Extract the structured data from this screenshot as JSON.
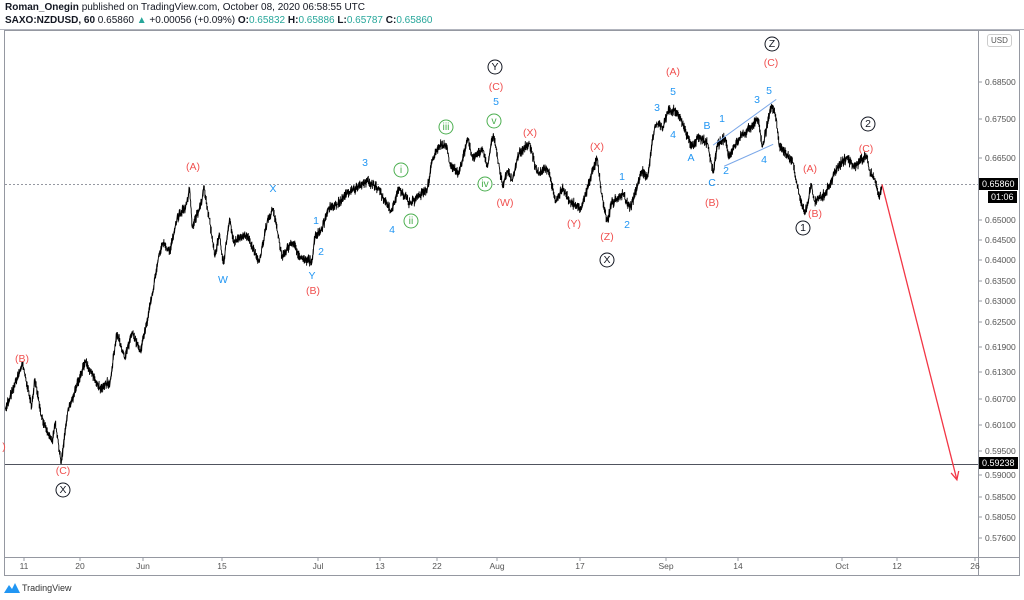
{
  "header": {
    "author": "Roman_Onegin",
    "published": "published on TradingView.com, October 08, 2020 06:58:55 UTC",
    "symbol": "SAXO:NZDUSD, 60",
    "last": "0.65860",
    "change": "+0.00056 (+0.09%)",
    "open_label": "O:",
    "open": "0.65832",
    "high_label": "H:",
    "high": "0.65886",
    "low_label": "L:",
    "low": "0.65787",
    "close_label": "C:",
    "close": "0.65860",
    "up_icon": "triangle-up-icon"
  },
  "currency": "USD",
  "current_price_label": "0.65860",
  "countdown": "01:06",
  "level_label": "0.59238",
  "brand": "TradingView",
  "colors": {
    "red": "#f0504f",
    "blue": "#2196f3",
    "green": "#4caf50",
    "black": "#131722",
    "teal": "#26a69a",
    "trend": "#7aa7e8"
  },
  "chart_data": {
    "type": "line",
    "symbol": "SAXO:NZDUSD",
    "interval": "60",
    "y_ticks": [
      {
        "label": "0.68500",
        "price": 0.685
      },
      {
        "label": "0.67500",
        "price": 0.675
      },
      {
        "label": "0.66500",
        "price": 0.665
      },
      {
        "label": "0.65000",
        "price": 0.65
      },
      {
        "label": "0.64500",
        "price": 0.645
      },
      {
        "label": "0.64000",
        "price": 0.64
      },
      {
        "label": "0.63500",
        "price": 0.635
      },
      {
        "label": "0.63000",
        "price": 0.63
      },
      {
        "label": "0.62500",
        "price": 0.625
      },
      {
        "label": "0.61900",
        "price": 0.619
      },
      {
        "label": "0.61300",
        "price": 0.613
      },
      {
        "label": "0.60700",
        "price": 0.607
      },
      {
        "label": "0.60100",
        "price": 0.601
      },
      {
        "label": "0.59500",
        "price": 0.595
      },
      {
        "label": "0.59000",
        "price": 0.59
      },
      {
        "label": "0.58500",
        "price": 0.585
      },
      {
        "label": "0.58050",
        "price": 0.5805
      },
      {
        "label": "0.57600",
        "price": 0.576
      }
    ],
    "x_ticks": [
      {
        "label": "11",
        "date": "2020-05-11"
      },
      {
        "label": "20",
        "date": "2020-05-20"
      },
      {
        "label": "Jun",
        "date": "2020-06-01"
      },
      {
        "label": "15",
        "date": "2020-06-15"
      },
      {
        "label": "Jul",
        "date": "2020-07-01"
      },
      {
        "label": "13",
        "date": "2020-07-13"
      },
      {
        "label": "22",
        "date": "2020-07-22"
      },
      {
        "label": "Aug",
        "date": "2020-08-03"
      },
      {
        "label": "17",
        "date": "2020-08-17"
      },
      {
        "label": "Sep",
        "date": "2020-09-01"
      },
      {
        "label": "14",
        "date": "2020-09-14"
      },
      {
        "label": "Oct",
        "date": "2020-10-01"
      },
      {
        "label": "12",
        "date": "2020-10-12"
      },
      {
        "label": "26",
        "date": "2020-10-26"
      }
    ],
    "series": [
      {
        "points": [
          [
            "2020-05-08T00:00",
            0.6046
          ],
          [
            "2020-05-10T18:00",
            0.6151
          ],
          [
            "2020-05-12T06:00",
            0.6051
          ],
          [
            "2020-05-12T18:00",
            0.6116
          ],
          [
            "2020-05-13T18:00",
            0.603
          ],
          [
            "2020-05-15T12:00",
            0.597
          ],
          [
            "2020-05-16T00:00",
            0.6016
          ],
          [
            "2020-05-17T00:00",
            0.5924
          ],
          [
            "2020-05-18T00:00",
            0.604
          ],
          [
            "2020-05-21T00:00",
            0.6155
          ],
          [
            "2020-05-23T18:00",
            0.6093
          ],
          [
            "2020-05-25T18:00",
            0.6109
          ],
          [
            "2020-05-27T00:00",
            0.6225
          ],
          [
            "2020-05-28T12:00",
            0.6162
          ],
          [
            "2020-05-30T00:00",
            0.6225
          ],
          [
            "2020-05-31T12:00",
            0.6178
          ],
          [
            "2020-06-02T12:00",
            0.6304
          ],
          [
            "2020-06-03T18:00",
            0.6409
          ],
          [
            "2020-06-04T12:00",
            0.6444
          ],
          [
            "2020-06-05T18:00",
            0.6419
          ],
          [
            "2020-06-07T00:00",
            0.6503
          ],
          [
            "2020-06-08T18:00",
            0.6538
          ],
          [
            "2020-06-09T06:00",
            0.6578
          ],
          [
            "2020-06-09T18:00",
            0.648
          ],
          [
            "2020-06-11T12:00",
            0.6553
          ],
          [
            "2020-06-11T18:00",
            0.6583
          ],
          [
            "2020-06-12T18:00",
            0.6503
          ],
          [
            "2020-06-13T18:00",
            0.6407
          ],
          [
            "2020-06-14T12:00",
            0.6468
          ],
          [
            "2020-06-15T06:00",
            0.639
          ],
          [
            "2020-06-16T06:00",
            0.6505
          ],
          [
            "2020-06-17T00:00",
            0.6444
          ],
          [
            "2020-06-19T00:00",
            0.6463
          ],
          [
            "2020-06-21T06:00",
            0.6395
          ],
          [
            "2020-06-22T12:00",
            0.6493
          ],
          [
            "2020-06-23T12:00",
            0.6528
          ],
          [
            "2020-06-24T06:00",
            0.6471
          ],
          [
            "2020-06-25T00:00",
            0.6409
          ],
          [
            "2020-06-26T18:00",
            0.6444
          ],
          [
            "2020-06-28T00:00",
            0.6409
          ],
          [
            "2020-06-30T00:00",
            0.6395
          ],
          [
            "2020-06-30T12:00",
            0.6458
          ],
          [
            "2020-07-01T18:00",
            0.6476
          ],
          [
            "2020-07-03T00:00",
            0.6528
          ],
          [
            "2020-07-04T18:00",
            0.6538
          ],
          [
            "2020-07-07T06:00",
            0.657
          ],
          [
            "2020-07-10T12:00",
            0.6595
          ],
          [
            "2020-07-12T12:00",
            0.6578
          ],
          [
            "2020-07-14T18:00",
            0.652
          ],
          [
            "2020-07-16T00:00",
            0.6578
          ],
          [
            "2020-07-17T18:00",
            0.6538
          ],
          [
            "2020-07-20T12:00",
            0.6578
          ],
          [
            "2020-07-21T06:00",
            0.6645
          ],
          [
            "2020-07-22T12:00",
            0.6683
          ],
          [
            "2020-07-24T00:00",
            0.6683
          ],
          [
            "2020-07-24T12:00",
            0.6638
          ],
          [
            "2020-07-26T06:00",
            0.6613
          ],
          [
            "2020-07-28T06:00",
            0.67
          ],
          [
            "2020-07-29T00:00",
            0.6653
          ],
          [
            "2020-07-31T06:00",
            0.667
          ],
          [
            "2020-08-01T00:00",
            0.6628
          ],
          [
            "2020-08-02T06:00",
            0.6713
          ],
          [
            "2020-08-03T06:00",
            0.6638
          ],
          [
            "2020-08-04T00:00",
            0.6578
          ],
          [
            "2020-08-04T18:00",
            0.662
          ],
          [
            "2020-08-05T12:00",
            0.6595
          ],
          [
            "2020-08-06T18:00",
            0.6663
          ],
          [
            "2020-08-08T12:00",
            0.6688
          ],
          [
            "2020-08-09T18:00",
            0.6613
          ],
          [
            "2020-08-11T12:00",
            0.6625
          ],
          [
            "2020-08-13T00:00",
            0.6545
          ],
          [
            "2020-08-14T00:00",
            0.6578
          ],
          [
            "2020-08-15T06:00",
            0.6545
          ],
          [
            "2020-08-17T06:00",
            0.6525
          ],
          [
            "2020-08-19T00:00",
            0.6613
          ],
          [
            "2020-08-20T00:00",
            0.665
          ],
          [
            "2020-08-20T18:00",
            0.6563
          ],
          [
            "2020-08-21T18:00",
            0.6495
          ],
          [
            "2020-08-22T12:00",
            0.654
          ],
          [
            "2020-08-24T12:00",
            0.6563
          ],
          [
            "2020-08-25T18:00",
            0.6528
          ],
          [
            "2020-08-27T00:00",
            0.6578
          ],
          [
            "2020-08-27T18:00",
            0.662
          ],
          [
            "2020-08-28T18:00",
            0.6603
          ],
          [
            "2020-08-30T00:00",
            0.6728
          ],
          [
            "2020-08-30T12:00",
            0.6738
          ],
          [
            "2020-08-31T12:00",
            0.6728
          ],
          [
            "2020-09-01T06:00",
            0.677
          ],
          [
            "2020-09-02T12:00",
            0.6775
          ],
          [
            "2020-09-03T18:00",
            0.6745
          ],
          [
            "2020-09-05T00:00",
            0.67
          ],
          [
            "2020-09-05T18:00",
            0.6678
          ],
          [
            "2020-09-06T18:00",
            0.6703
          ],
          [
            "2020-09-08T12:00",
            0.6688
          ],
          [
            "2020-09-09T12:00",
            0.6613
          ],
          [
            "2020-09-10T06:00",
            0.6683
          ],
          [
            "2020-09-11T18:00",
            0.6703
          ],
          [
            "2020-09-12T06:00",
            0.665
          ],
          [
            "2020-09-14T06:00",
            0.6703
          ],
          [
            "2020-09-16T00:00",
            0.6728
          ],
          [
            "2020-09-17T06:00",
            0.6753
          ],
          [
            "2020-09-18T00:00",
            0.6678
          ],
          [
            "2020-09-19T12:00",
            0.679
          ],
          [
            "2020-09-20T06:00",
            0.6753
          ],
          [
            "2020-09-20T18:00",
            0.6678
          ],
          [
            "2020-09-22T00:00",
            0.6658
          ],
          [
            "2020-09-23T00:00",
            0.6638
          ],
          [
            "2020-09-24T00:00",
            0.6563
          ],
          [
            "2020-09-25T00:00",
            0.6515
          ],
          [
            "2020-09-26T00:00",
            0.6588
          ],
          [
            "2020-09-26T12:00",
            0.6545
          ],
          [
            "2020-09-28T06:00",
            0.6563
          ],
          [
            "2020-09-29T12:00",
            0.6603
          ],
          [
            "2020-09-30T06:00",
            0.6628
          ],
          [
            "2020-10-02T00:00",
            0.6653
          ],
          [
            "2020-10-03T06:00",
            0.6628
          ],
          [
            "2020-10-06T00:00",
            0.6658
          ],
          [
            "2020-10-06T12:00",
            0.662
          ],
          [
            "2020-10-07T12:00",
            0.66
          ],
          [
            "2020-10-08T12:00",
            0.655
          ],
          [
            "2020-10-09T00:00",
            0.6586
          ]
        ]
      }
    ],
    "horizontal_lines": [
      {
        "price": 0.6586,
        "style": "dotted",
        "label": "0.65860"
      },
      {
        "price": 0.59238,
        "style": "solid",
        "label": "0.59238"
      }
    ],
    "trendlines": [
      {
        "from": [
          "2020-09-09T12:00",
          0.6683
        ],
        "to": [
          "2020-09-20T06:00",
          0.6803
        ]
      },
      {
        "from": [
          "2020-09-11T12:00",
          0.663
        ],
        "to": [
          "2020-09-19T18:00",
          0.6685
        ]
      }
    ],
    "projection_arrow": {
      "from": [
        "2020-10-09T00:00",
        0.6586
      ],
      "to": [
        "2020-10-22T18:00",
        0.5889
      ],
      "color": "#f23645"
    },
    "annotations": [
      {
        "text": "(A)",
        "color": "red",
        "circled": false
      },
      {
        "text": "X",
        "color": "blue",
        "circled": false
      },
      {
        "text": "1",
        "color": "blue",
        "circled": false
      },
      {
        "text": "2",
        "color": "blue",
        "circled": false
      },
      {
        "text": "W",
        "color": "blue",
        "circled": false
      },
      {
        "text": "Y",
        "color": "blue",
        "circled": false
      },
      {
        "text": "(B)",
        "color": "red",
        "circled": false
      },
      {
        "text": "(B)",
        "color": "red",
        "circled": false
      },
      {
        "text": ")",
        "color": "red",
        "circled": false
      },
      {
        "text": "(C)",
        "color": "red",
        "circled": false
      },
      {
        "text": "X",
        "color": "black",
        "circled": true
      },
      {
        "text": "Y",
        "color": "black",
        "circled": true
      },
      {
        "text": "(C)",
        "color": "red",
        "circled": false
      },
      {
        "text": "5",
        "color": "blue",
        "circled": false
      },
      {
        "text": "v",
        "color": "green",
        "circled": true
      },
      {
        "text": "iii",
        "color": "green",
        "circled": true
      },
      {
        "text": "(X)",
        "color": "red",
        "circled": false
      },
      {
        "text": "(X)",
        "color": "red",
        "circled": false
      },
      {
        "text": "3",
        "color": "blue",
        "circled": false
      },
      {
        "text": "i",
        "color": "green",
        "circled": true
      },
      {
        "text": "1",
        "color": "blue",
        "circled": false
      },
      {
        "text": "iv",
        "color": "green",
        "circled": true
      },
      {
        "text": "(W)",
        "color": "red",
        "circled": false
      },
      {
        "text": "ii",
        "color": "green",
        "circled": true
      },
      {
        "text": "4",
        "color": "blue",
        "circled": false
      },
      {
        "text": "(Y)",
        "color": "red",
        "circled": false
      },
      {
        "text": "2",
        "color": "blue",
        "circled": false
      },
      {
        "text": "(Z)",
        "color": "red",
        "circled": false
      },
      {
        "text": "X",
        "color": "black",
        "circled": true
      },
      {
        "text": "3",
        "color": "blue",
        "circled": false
      },
      {
        "text": "Z",
        "color": "black",
        "circled": true
      },
      {
        "text": "(C)",
        "color": "red",
        "circled": false
      },
      {
        "text": "(A)",
        "color": "red",
        "circled": false
      },
      {
        "text": "5",
        "color": "blue",
        "circled": false
      },
      {
        "text": "5",
        "color": "blue",
        "circled": false
      },
      {
        "text": "3",
        "color": "blue",
        "circled": false
      },
      {
        "text": "B",
        "color": "blue",
        "circled": false
      },
      {
        "text": "1",
        "color": "blue",
        "circled": false
      },
      {
        "text": "4",
        "color": "blue",
        "circled": false
      },
      {
        "text": "A",
        "color": "blue",
        "circled": false
      },
      {
        "text": "2",
        "color": "blue",
        "circled": false
      },
      {
        "text": "4",
        "color": "blue",
        "circled": false
      },
      {
        "text": "C",
        "color": "blue",
        "circled": false
      },
      {
        "text": "(B)",
        "color": "red",
        "circled": false
      },
      {
        "text": "2",
        "color": "black",
        "circled": true
      },
      {
        "text": "(C)",
        "color": "red",
        "circled": false
      },
      {
        "text": "(A)",
        "color": "red",
        "circled": false
      },
      {
        "text": "(B)",
        "color": "red",
        "circled": false
      },
      {
        "text": "1",
        "color": "black",
        "circled": true
      }
    ]
  }
}
